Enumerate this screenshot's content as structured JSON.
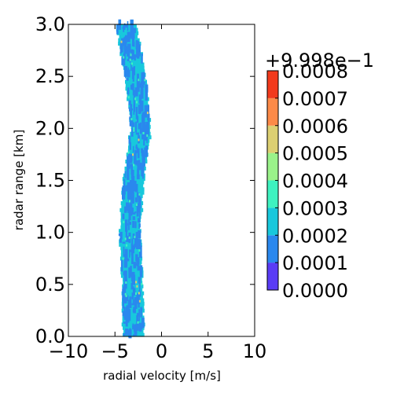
{
  "chart_data": {
    "type": "heatmap",
    "xlabel": "radial velocity [m/s]",
    "ylabel": "radar range [km]",
    "xlim": [
      -10,
      10
    ],
    "ylim": [
      0.0,
      3.0
    ],
    "x_ticks": [
      "−10",
      "−5",
      "0",
      "5",
      "10"
    ],
    "x_tick_values": [
      -10,
      -5,
      0,
      5,
      10
    ],
    "y_ticks": [
      "0.0",
      "0.5",
      "1.0",
      "1.5",
      "2.0",
      "2.5",
      "3.0"
    ],
    "y_tick_values": [
      0.0,
      0.5,
      1.0,
      1.5,
      2.0,
      2.5,
      3.0
    ],
    "grid": false,
    "colorbar": {
      "offset_label": "+9.998e−1",
      "tick_labels": [
        "0.0000",
        "0.0001",
        "0.0002",
        "0.0003",
        "0.0004",
        "0.0005",
        "0.0006",
        "0.0007",
        "0.0008"
      ],
      "tick_values": [
        0.0,
        0.0001,
        0.0002,
        0.0003,
        0.0004,
        0.0005,
        0.0006,
        0.0007,
        0.0008
      ],
      "colors": [
        "#5a3cf5",
        "#2a88ee",
        "#18c8dc",
        "#3ef2c0",
        "#9af28a",
        "#dccf72",
        "#fc8a48",
        "#f23a1c"
      ]
    },
    "band_center": [
      {
        "range": 0.0,
        "velocity": -3.0
      },
      {
        "range": 0.5,
        "velocity": -3.1
      },
      {
        "range": 1.0,
        "velocity": -3.4
      },
      {
        "range": 1.5,
        "velocity": -3.0
      },
      {
        "range": 2.0,
        "velocity": -2.2
      },
      {
        "range": 2.5,
        "velocity": -2.8
      },
      {
        "range": 3.0,
        "velocity": -3.8
      }
    ],
    "band_width_ms": 2.2,
    "dominant_value": 0.00025
  }
}
